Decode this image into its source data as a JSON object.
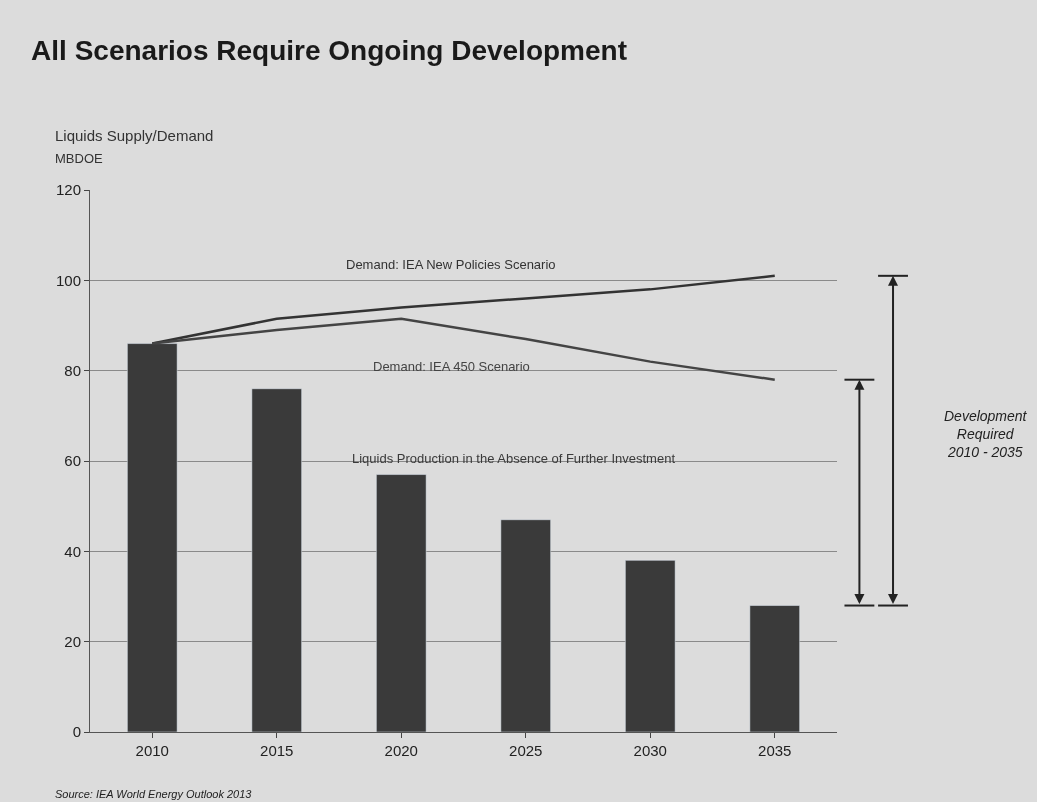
{
  "chart_data": {
    "type": "bar",
    "title": "All Scenarios Require Ongoing Development",
    "subtitle": "Liquids Supply/Demand",
    "ylabel": "MBDOE",
    "categories": [
      "2010",
      "2015",
      "2020",
      "2025",
      "2030",
      "2035"
    ],
    "series": [
      {
        "name": "Liquids Production in the Absence of Further Investment",
        "color": "#3a3a3a",
        "values": [
          86,
          76,
          57,
          47,
          38,
          28
        ]
      },
      {
        "name": "Demand: IEA New Policies Scenario",
        "type": "line",
        "color": "#333333",
        "values": [
          86,
          91.5,
          94,
          96,
          98,
          101
        ]
      },
      {
        "name": "Demand: IEA 450 Scenario",
        "type": "line",
        "color": "#444444",
        "values": [
          86,
          89,
          91.5,
          87,
          82,
          78
        ]
      }
    ],
    "ylim": [
      0,
      120
    ],
    "yticks": [
      0,
      20,
      40,
      60,
      80,
      100,
      120
    ],
    "grid": "y",
    "legend": false,
    "marker": "none",
    "line_style": "solid",
    "annotations": [
      "Development\nRequired\n2010 - 2035",
      "Source: IEA World Energy Outlook 2013"
    ]
  }
}
